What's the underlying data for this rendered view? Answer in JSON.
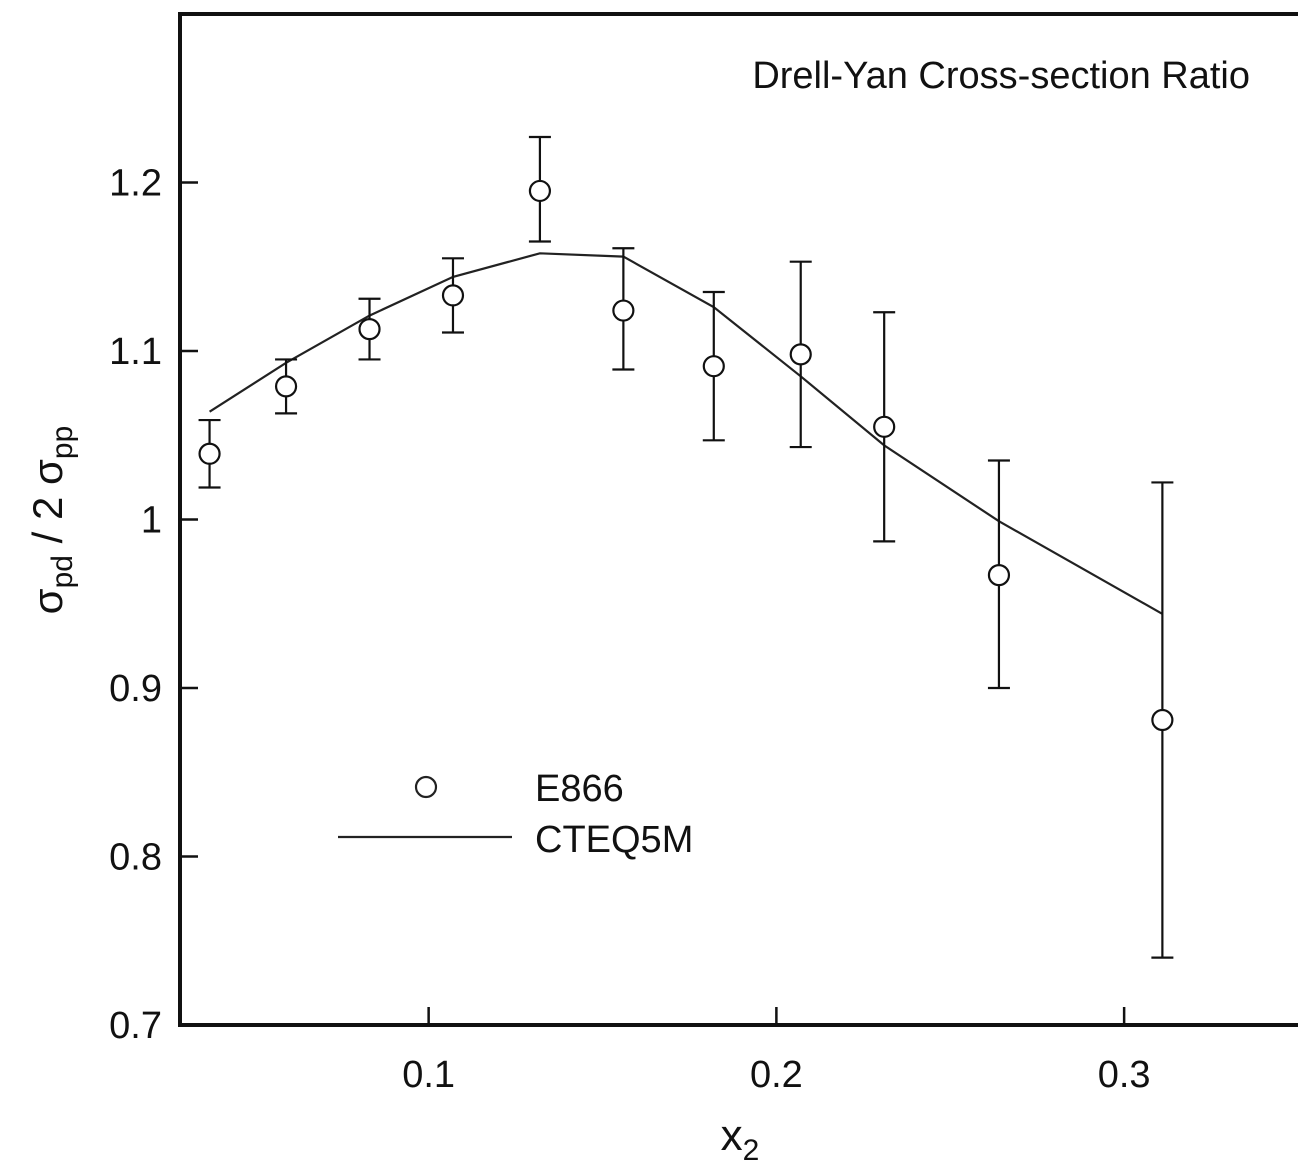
{
  "chart_data": {
    "type": "scatter",
    "title": "Drell-Yan Cross-section Ratio",
    "xlabel": {
      "base": "x",
      "sub": "2"
    },
    "ylabel": {
      "sigma1": "σ",
      "sub1": "pd",
      "mid": " / 2 ",
      "sigma2": "σ",
      "sub2": "pp"
    },
    "xlim": [
      0.0285,
      0.35
    ],
    "ylim": [
      0.7,
      1.3
    ],
    "xticks": [
      0.1,
      0.2,
      0.3
    ],
    "xtick_labels": [
      "0.1",
      "0.2",
      "0.3"
    ],
    "yticks": [
      0.7,
      0.8,
      0.9,
      1.0,
      1.1,
      1.2
    ],
    "ytick_labels": [
      "0.7",
      "0.8",
      "0.9",
      "1",
      "1.1",
      "1.2"
    ],
    "grid": false,
    "legend_position": "lower-left",
    "series": [
      {
        "name": "E866",
        "kind": "points",
        "marker": "open-circle",
        "x": [
          0.037,
          0.059,
          0.083,
          0.107,
          0.132,
          0.156,
          0.182,
          0.207,
          0.231,
          0.264,
          0.311
        ],
        "y": [
          1.039,
          1.079,
          1.113,
          1.133,
          1.195,
          1.124,
          1.091,
          1.098,
          1.055,
          0.967,
          0.881
        ],
        "y_err_low": [
          1.019,
          1.063,
          1.095,
          1.111,
          1.165,
          1.089,
          1.047,
          1.043,
          0.987,
          0.9,
          0.74
        ],
        "y_err_high": [
          1.059,
          1.095,
          1.131,
          1.155,
          1.227,
          1.161,
          1.135,
          1.153,
          1.123,
          1.035,
          1.022
        ]
      },
      {
        "name": "CTEQ5M",
        "kind": "line",
        "x": [
          0.037,
          0.059,
          0.083,
          0.107,
          0.132,
          0.156,
          0.182,
          0.207,
          0.231,
          0.264,
          0.311
        ],
        "y": [
          1.064,
          1.093,
          1.121,
          1.144,
          1.158,
          1.156,
          1.126,
          1.085,
          1.044,
          0.999,
          0.944
        ]
      }
    ],
    "colors": {
      "axis": "#111111",
      "marker_fill": "#ffffff",
      "line": "#222222"
    }
  }
}
